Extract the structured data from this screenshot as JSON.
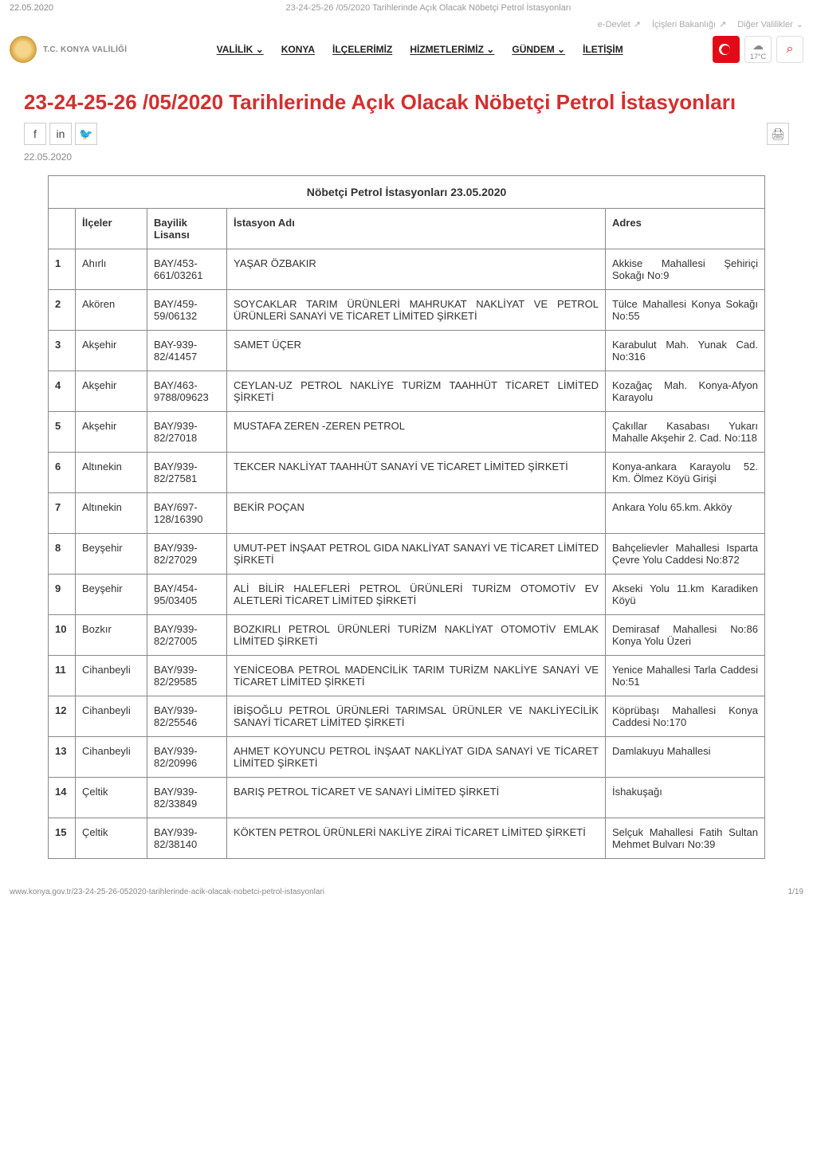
{
  "meta": {
    "timestamp_top": "22.05.2020",
    "breadcrumb_title": "23-24-25-26 /05/2020 Tarihlerinde Açık Olacak Nöbetçi Petrol İstasyonları",
    "site_name": "T.C. KONYA VALİLİĞİ",
    "gov_links": [
      "e-Devlet",
      "İçişleri Bakanlığı",
      "Diğer Valilikler"
    ],
    "main_nav": [
      "VALİLİK",
      "KONYA",
      "İLÇELERİMİZ",
      "HİZMETLERİMİZ",
      "GÜNDEM",
      "İLETİŞİM"
    ],
    "weather_temp": "17°C",
    "footer_url": "www.konya.gov.tr/23-24-25-26-052020-tarihlerinde-acik-olacak-nobetci-petrol-istasyonlari",
    "footer_page": "1/19"
  },
  "page": {
    "title": "23-24-25-26 /05/2020 Tarihlerinde Açık Olacak Nöbetçi Petrol İstasyonları",
    "date": "22.05.2020"
  },
  "table": {
    "caption": "Nöbetçi Petrol İstasyonları 23.05.2020",
    "headers": {
      "ilceler": "İlçeler",
      "lisans": "Bayilik Lisansı",
      "istasyon": "İstasyon Adı",
      "adres": "Adres"
    },
    "rows": [
      {
        "n": "1",
        "ilce": "Ahırlı",
        "lisans": "BAY/453-661/03261",
        "ad": "YAŞAR ÖZBAKIR",
        "adres": "Akkise Mahallesi Şehiriçi Sokağı No:9"
      },
      {
        "n": "2",
        "ilce": "Akören",
        "lisans": "BAY/459-59/06132",
        "ad": "SOYCAKLAR TARIM ÜRÜNLERİ MAHRUKAT NAKLİYAT VE PETROL ÜRÜNLERİ SANAYİ VE TİCARET LİMİTED ŞİRKETİ",
        "adres": "Tülce Mahallesi Konya Sokağı No:55"
      },
      {
        "n": "3",
        "ilce": "Akşehir",
        "lisans": "BAY-939-82/41457",
        "ad": "SAMET ÜÇER",
        "adres": "Karabulut Mah. Yunak Cad. No:316"
      },
      {
        "n": "4",
        "ilce": "Akşehir",
        "lisans": "BAY/463-9788/09623",
        "ad": "CEYLAN-UZ PETROL NAKLİYE TURİZM TAAHHÜT TİCARET LİMİTED ŞİRKETİ",
        "adres": "Kozağaç Mah. Konya-Afyon Karayolu"
      },
      {
        "n": "5",
        "ilce": "Akşehir",
        "lisans": "BAY/939-82/27018",
        "ad": "MUSTAFA ZEREN -ZEREN PETROL",
        "adres": "Çakıllar Kasabası Yukarı Mahalle Akşehir 2. Cad. No:118"
      },
      {
        "n": "6",
        "ilce": "Altınekin",
        "lisans": "BAY/939-82/27581",
        "ad": "TEKCER NAKLİYAT TAAHHÜT SANAYİ VE TİCARET LİMİTED ŞİRKETİ",
        "adres": " Konya-ankara Karayolu 52. Km. Ölmez Köyü Girişi"
      },
      {
        "n": "7",
        "ilce": "Altınekin",
        "lisans": "BAY/697-128/16390",
        "ad": "BEKİR POÇAN",
        "adres": " Ankara Yolu 65.km. Akköy"
      },
      {
        "n": "8",
        "ilce": "Beyşehir",
        "lisans": "BAY/939-82/27029",
        "ad": "UMUT-PET İNŞAAT PETROL GIDA NAKLİYAT SANAYİ VE TİCARET LİMİTED ŞİRKETİ",
        "adres": "Bahçelievler Mahallesi Isparta Çevre Yolu Caddesi No:872"
      },
      {
        "n": "9",
        "ilce": "Beyşehir",
        "lisans": "BAY/454-95/03405",
        "ad": "ALİ BİLİR HALEFLERİ PETROL ÜRÜNLERİ TURİZM OTOMOTİV EV ALETLERİ TİCARET LİMİTED ŞİRKETİ",
        "adres": " Akseki Yolu 11.km Karadiken Köyü"
      },
      {
        "n": "10",
        "ilce": "Bozkır",
        "lisans": "BAY/939-82/27005",
        "ad": "BOZKIRLI PETROL ÜRÜNLERİ TURİZM NAKLİYAT OTOMOTİV EMLAK LİMİTED ŞİRKETİ",
        "adres": "Demirasaf Mahallesi No:86 Konya Yolu Üzeri"
      },
      {
        "n": "11",
        "ilce": "Cihanbeyli",
        "lisans": "BAY/939-82/29585",
        "ad": "YENİCEOBA PETROL MADENCİLİK TARIM TURİZM NAKLİYE SANAYİ VE TİCARET LİMİTED ŞİRKETİ",
        "adres": "Yenice Mahallesi Tarla Caddesi No:51"
      },
      {
        "n": "12",
        "ilce": "Cihanbeyli",
        "lisans": "BAY/939-82/25546",
        "ad": "İBİŞOĞLU PETROL ÜRÜNLERİ TARIMSAL ÜRÜNLER VE NAKLİYECİLİK SANAYİ TİCARET LİMİTED ŞİRKETİ",
        "adres": " Köprübaşı Mahallesi Konya Caddesi No:170"
      },
      {
        "n": "13",
        "ilce": "Cihanbeyli",
        "lisans": "BAY/939-82/20996",
        "ad": "AHMET KOYUNCU PETROL İNŞAAT NAKLİYAT GIDA SANAYİ VE TİCARET LİMİTED ŞİRKETİ",
        "adres": "Damlakuyu Mahallesi"
      },
      {
        "n": "14",
        "ilce": "Çeltik",
        "lisans": "BAY/939-82/33849",
        "ad": "BARIŞ PETROL TİCARET VE SANAYİ LİMİTED ŞİRKETİ",
        "adres": "İshakuşağı"
      },
      {
        "n": "15",
        "ilce": "Çeltik",
        "lisans": "BAY/939-82/38140",
        "ad": "KÖKTEN PETROL ÜRÜNLERİ NAKLİYE ZİRAİ TİCARET LİMİTED ŞİRKETİ",
        "adres": "Selçuk Mahallesi Fatih Sultan Mehmet Bulvarı No:39"
      }
    ]
  }
}
